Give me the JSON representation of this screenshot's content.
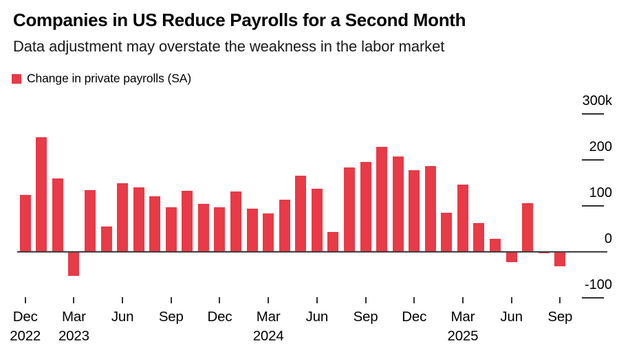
{
  "header": {
    "title": "Companies in US Reduce Payrolls for a Second Month",
    "subtitle": "Data adjustment may overstate the weakness in the labor market"
  },
  "legend": {
    "label": "Change in private payrolls (SA)"
  },
  "colors": {
    "bar": "#e83a47",
    "axis_line": "#3f3f3f",
    "tick": "#2e2e2e",
    "text": "#000000"
  },
  "chart_data": {
    "type": "bar",
    "title": "Companies in US Reduce Payrolls for a Second Month",
    "subtitle": "Data adjustment may overstate the weakness in the labor market",
    "series_name": "Change in private payrolls (SA)",
    "unit": "thousands",
    "categories": [
      "Dec 2022",
      "Jan 2023",
      "Feb 2023",
      "Mar 2023",
      "Apr 2023",
      "May 2023",
      "Jun 2023",
      "Jul 2023",
      "Aug 2023",
      "Sep 2023",
      "Oct 2023",
      "Nov 2023",
      "Dec 2023",
      "Jan 2024",
      "Feb 2024",
      "Mar 2024",
      "Apr 2024",
      "May 2024",
      "Jun 2024",
      "Jul 2024",
      "Aug 2024",
      "Sep 2024",
      "Oct 2024",
      "Nov 2024",
      "Dec 2024",
      "Jan 2025",
      "Feb 2025",
      "Mar 2025",
      "Apr 2025",
      "May 2025",
      "Jun 2025",
      "Jul 2025",
      "Aug 2025",
      "Sep 2025"
    ],
    "values": [
      124,
      250,
      160,
      -52,
      134,
      55,
      149,
      140,
      121,
      97,
      133,
      105,
      97,
      132,
      94,
      83,
      114,
      165,
      138,
      43,
      183,
      196,
      228,
      207,
      178,
      187,
      85,
      147,
      62,
      29,
      -22,
      106,
      -3,
      -32
    ],
    "ylim": [
      -100,
      300
    ],
    "y_ticks": [
      {
        "value": 300,
        "label": "300k"
      },
      {
        "value": 200,
        "label": "200"
      },
      {
        "value": 100,
        "label": "100"
      },
      {
        "value": 0,
        "label": "0"
      },
      {
        "value": -100,
        "label": "-100"
      }
    ],
    "x_ticks": [
      {
        "index": 0,
        "month": "Dec",
        "year": "2022"
      },
      {
        "index": 3,
        "month": "Mar",
        "year": "2023"
      },
      {
        "index": 6,
        "month": "Jun",
        "year": ""
      },
      {
        "index": 9,
        "month": "Sep",
        "year": ""
      },
      {
        "index": 12,
        "month": "Dec",
        "year": ""
      },
      {
        "index": 15,
        "month": "Mar",
        "year": "2024"
      },
      {
        "index": 18,
        "month": "Jun",
        "year": ""
      },
      {
        "index": 21,
        "month": "Sep",
        "year": ""
      },
      {
        "index": 24,
        "month": "Dec",
        "year": ""
      },
      {
        "index": 27,
        "month": "Mar",
        "year": "2025"
      },
      {
        "index": 30,
        "month": "Jun",
        "year": ""
      },
      {
        "index": 33,
        "month": "Sep",
        "year": ""
      }
    ],
    "legend_position": "top-left",
    "y_axis_side": "right",
    "grid": false
  }
}
